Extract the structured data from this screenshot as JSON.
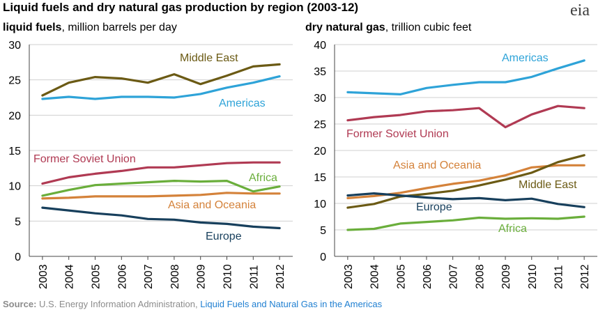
{
  "title": "Liquid fuels and dry natural  gas production  by region (2003-12)",
  "logo_text": "eia",
  "source": {
    "label": "Source:",
    "text": "U.S. Energy Information Administration,",
    "link": "Liquid Fuels and Natural Gas in the Americas"
  },
  "chart_data": [
    {
      "type": "line",
      "title_bold": "liquid fuels",
      "title_rest": ", million barrels per day",
      "x": [
        "2003",
        "2004",
        "2005",
        "2006",
        "2007",
        "2008",
        "2009",
        "2010",
        "2011",
        "2012"
      ],
      "ylim": [
        0,
        30
      ],
      "yticks": [
        0,
        5,
        10,
        15,
        20,
        25,
        30
      ],
      "grid": true,
      "series": [
        {
          "name": "Middle East",
          "color": "#6b5a14",
          "values": [
            22.8,
            24.6,
            25.4,
            25.2,
            24.6,
            25.8,
            24.4,
            25.6,
            26.9,
            27.2
          ]
        },
        {
          "name": "Americas",
          "color": "#2ea3d8",
          "values": [
            22.3,
            22.6,
            22.3,
            22.6,
            22.6,
            22.5,
            23.0,
            23.9,
            24.6,
            25.5
          ]
        },
        {
          "name": "Former Soviet Union",
          "color": "#b03a53",
          "values": [
            10.3,
            11.2,
            11.7,
            12.1,
            12.6,
            12.6,
            12.9,
            13.2,
            13.3,
            13.3
          ]
        },
        {
          "name": "Africa",
          "color": "#6aae3b",
          "values": [
            8.6,
            9.4,
            10.1,
            10.3,
            10.5,
            10.7,
            10.6,
            10.7,
            9.2,
            9.9
          ]
        },
        {
          "name": "Asia and Oceania",
          "color": "#d4823a",
          "values": [
            8.2,
            8.3,
            8.5,
            8.5,
            8.5,
            8.6,
            8.7,
            9.0,
            8.9,
            8.9
          ]
        },
        {
          "name": "Europe",
          "color": "#173f5c",
          "values": [
            6.9,
            6.5,
            6.1,
            5.8,
            5.3,
            5.2,
            4.8,
            4.6,
            4.2,
            4.0
          ]
        }
      ]
    },
    {
      "type": "line",
      "title_bold": "dry natural  gas",
      "title_rest": ", trillion cubic feet",
      "x": [
        "2003",
        "2004",
        "2005",
        "2006",
        "2007",
        "2008",
        "2009",
        "2010",
        "2011",
        "2012"
      ],
      "ylim": [
        0,
        40
      ],
      "yticks": [
        0,
        5,
        10,
        15,
        20,
        25,
        30,
        35,
        40
      ],
      "grid": true,
      "series": [
        {
          "name": "Americas",
          "color": "#2ea3d8",
          "values": [
            31.0,
            30.8,
            30.6,
            31.8,
            32.4,
            32.9,
            32.9,
            33.9,
            35.5,
            37.0
          ]
        },
        {
          "name": "Former Soviet Union",
          "color": "#b03a53",
          "values": [
            25.7,
            26.3,
            26.7,
            27.4,
            27.6,
            28.0,
            24.4,
            26.8,
            28.4,
            28.0
          ]
        },
        {
          "name": "Asia and Oceania",
          "color": "#d4823a",
          "values": [
            11.0,
            11.4,
            12.0,
            12.9,
            13.7,
            14.3,
            15.3,
            16.8,
            17.2,
            17.2
          ]
        },
        {
          "name": "Middle East",
          "color": "#6b5a14",
          "values": [
            9.2,
            9.9,
            11.3,
            11.8,
            12.4,
            13.4,
            14.5,
            15.8,
            17.8,
            19.1
          ]
        },
        {
          "name": "Europe",
          "color": "#173f5c",
          "values": [
            11.5,
            11.9,
            11.5,
            11.1,
            10.8,
            11.0,
            10.6,
            10.9,
            9.9,
            9.3
          ]
        },
        {
          "name": "Africa",
          "color": "#6aae3b",
          "values": [
            5.0,
            5.2,
            6.2,
            6.5,
            6.8,
            7.3,
            7.1,
            7.2,
            7.1,
            7.5
          ]
        }
      ]
    }
  ]
}
